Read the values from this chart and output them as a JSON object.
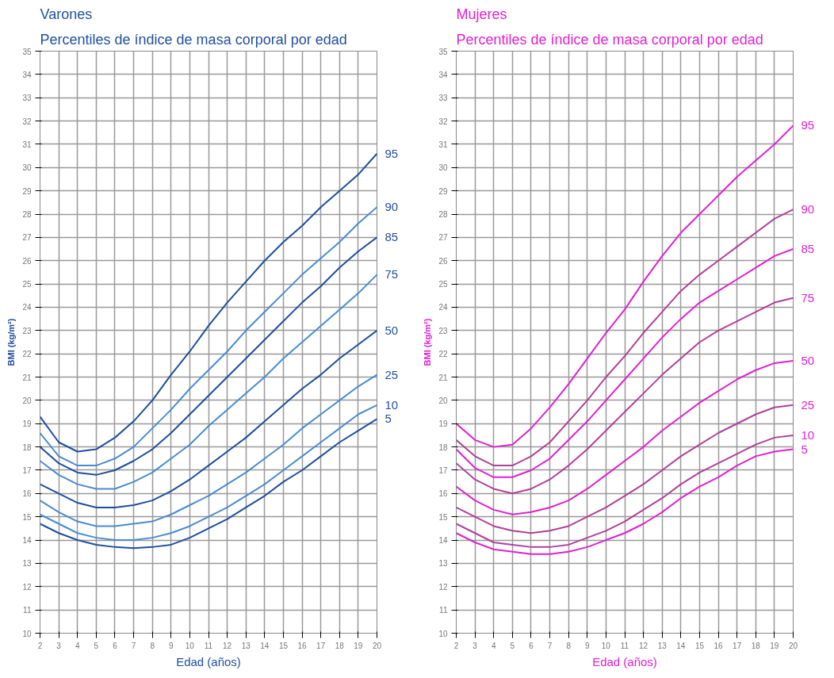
{
  "chart_data": [
    {
      "type": "line",
      "title": "Varones",
      "subtitle": "Percentiles de índice de masa corporal por edad",
      "xlabel": "Edad (años)",
      "ylabel": "BMI (kg/m²)",
      "x": [
        2,
        3,
        4,
        5,
        6,
        7,
        8,
        9,
        10,
        11,
        12,
        13,
        14,
        15,
        16,
        17,
        18,
        19,
        20
      ],
      "xlim": [
        2,
        20
      ],
      "ylim": [
        10,
        35
      ],
      "xticks": [
        2,
        3,
        4,
        5,
        6,
        7,
        8,
        9,
        10,
        11,
        12,
        13,
        14,
        15,
        16,
        17,
        18,
        19,
        20
      ],
      "yticks": [
        10,
        11,
        12,
        13,
        14,
        15,
        16,
        17,
        18,
        19,
        20,
        21,
        22,
        23,
        24,
        25,
        26,
        27,
        28,
        29,
        30,
        31,
        32,
        33,
        34,
        35
      ],
      "grid": true,
      "marker": "none",
      "line_style": "solid",
      "series": [
        {
          "name": "95",
          "color": "#1f4e9c",
          "values": [
            19.3,
            18.2,
            17.8,
            17.9,
            18.4,
            19.1,
            20.0,
            21.1,
            22.1,
            23.2,
            24.2,
            25.1,
            26.0,
            26.8,
            27.5,
            28.3,
            29.0,
            29.7,
            30.6
          ]
        },
        {
          "name": "90",
          "color": "#4a8bd0",
          "values": [
            18.6,
            17.6,
            17.2,
            17.2,
            17.5,
            18.0,
            18.8,
            19.6,
            20.5,
            21.3,
            22.1,
            23.0,
            23.8,
            24.6,
            25.4,
            26.1,
            26.8,
            27.6,
            28.3
          ]
        },
        {
          "name": "85",
          "color": "#1f4e9c",
          "values": [
            18.0,
            17.3,
            16.9,
            16.8,
            17.0,
            17.4,
            17.9,
            18.6,
            19.4,
            20.2,
            21.0,
            21.8,
            22.6,
            23.4,
            24.2,
            24.9,
            25.7,
            26.4,
            27.0
          ]
        },
        {
          "name": "75",
          "color": "#4a8bd0",
          "values": [
            17.4,
            16.8,
            16.4,
            16.2,
            16.2,
            16.5,
            16.9,
            17.5,
            18.1,
            18.9,
            19.6,
            20.3,
            21.0,
            21.8,
            22.5,
            23.2,
            23.9,
            24.6,
            25.4
          ]
        },
        {
          "name": "50",
          "color": "#1f4e9c",
          "values": [
            16.4,
            16.0,
            15.6,
            15.4,
            15.4,
            15.5,
            15.7,
            16.1,
            16.6,
            17.2,
            17.8,
            18.4,
            19.1,
            19.8,
            20.5,
            21.1,
            21.8,
            22.4,
            23.0
          ]
        },
        {
          "name": "25",
          "color": "#4a8bd0",
          "values": [
            15.7,
            15.2,
            14.8,
            14.6,
            14.6,
            14.7,
            14.8,
            15.1,
            15.5,
            15.9,
            16.4,
            16.9,
            17.5,
            18.1,
            18.8,
            19.4,
            20.0,
            20.6,
            21.1
          ]
        },
        {
          "name": "10",
          "color": "#4a8bd0",
          "values": [
            15.1,
            14.7,
            14.3,
            14.1,
            14.0,
            14.0,
            14.1,
            14.3,
            14.6,
            15.0,
            15.4,
            15.9,
            16.4,
            17.0,
            17.6,
            18.2,
            18.8,
            19.4,
            19.8
          ]
        },
        {
          "name": "5",
          "color": "#1f4e9c",
          "values": [
            14.7,
            14.3,
            14.0,
            13.8,
            13.7,
            13.65,
            13.7,
            13.8,
            14.1,
            14.5,
            14.9,
            15.4,
            15.9,
            16.5,
            17.0,
            17.6,
            18.2,
            18.7,
            19.2
          ]
        }
      ]
    },
    {
      "type": "line",
      "title": "Mujeres",
      "subtitle": "Percentiles de índice de masa corporal por edad",
      "xlabel": "Edad (años)",
      "ylabel": "BMI (kg/m²)",
      "x": [
        2,
        3,
        4,
        5,
        6,
        7,
        8,
        9,
        10,
        11,
        12,
        13,
        14,
        15,
        16,
        17,
        18,
        19,
        20
      ],
      "xlim": [
        2,
        20
      ],
      "ylim": [
        10,
        35
      ],
      "xticks": [
        2,
        3,
        4,
        5,
        6,
        7,
        8,
        9,
        10,
        11,
        12,
        13,
        14,
        15,
        16,
        17,
        18,
        19,
        20
      ],
      "yticks": [
        10,
        11,
        12,
        13,
        14,
        15,
        16,
        17,
        18,
        19,
        20,
        21,
        22,
        23,
        24,
        25,
        26,
        27,
        28,
        29,
        30,
        31,
        32,
        33,
        34,
        35
      ],
      "grid": true,
      "marker": "none",
      "line_style": "solid",
      "series": [
        {
          "name": "95",
          "color": "#e020d0",
          "values": [
            19.0,
            18.3,
            18.0,
            18.1,
            18.8,
            19.7,
            20.7,
            21.8,
            22.9,
            23.9,
            25.1,
            26.2,
            27.2,
            28.0,
            28.8,
            29.6,
            30.3,
            31.0,
            31.8
          ]
        },
        {
          "name": "90",
          "color": "#b0409a",
          "values": [
            18.3,
            17.6,
            17.2,
            17.2,
            17.6,
            18.2,
            19.1,
            20.0,
            21.0,
            21.9,
            22.9,
            23.8,
            24.7,
            25.4,
            26.0,
            26.6,
            27.2,
            27.8,
            28.2
          ]
        },
        {
          "name": "85",
          "color": "#e020d0",
          "values": [
            17.9,
            17.1,
            16.7,
            16.7,
            17.0,
            17.5,
            18.3,
            19.1,
            20.0,
            20.9,
            21.8,
            22.7,
            23.5,
            24.2,
            24.7,
            25.2,
            25.7,
            26.2,
            26.5
          ]
        },
        {
          "name": "75",
          "color": "#b0409a",
          "values": [
            17.3,
            16.6,
            16.2,
            16.0,
            16.2,
            16.6,
            17.2,
            17.9,
            18.7,
            19.5,
            20.3,
            21.1,
            21.8,
            22.5,
            23.0,
            23.4,
            23.8,
            24.2,
            24.4
          ]
        },
        {
          "name": "50",
          "color": "#e020d0",
          "values": [
            16.3,
            15.7,
            15.3,
            15.1,
            15.2,
            15.4,
            15.7,
            16.2,
            16.8,
            17.4,
            18.0,
            18.7,
            19.3,
            19.9,
            20.4,
            20.9,
            21.3,
            21.6,
            21.7
          ]
        },
        {
          "name": "25",
          "color": "#b0409a",
          "values": [
            15.4,
            15.0,
            14.6,
            14.4,
            14.3,
            14.4,
            14.6,
            15.0,
            15.4,
            15.9,
            16.4,
            17.0,
            17.6,
            18.1,
            18.6,
            19.0,
            19.4,
            19.7,
            19.8
          ]
        },
        {
          "name": "10",
          "color": "#b0409a",
          "values": [
            14.7,
            14.3,
            13.9,
            13.8,
            13.7,
            13.7,
            13.8,
            14.1,
            14.4,
            14.8,
            15.3,
            15.8,
            16.4,
            16.9,
            17.3,
            17.7,
            18.1,
            18.4,
            18.5
          ]
        },
        {
          "name": "5",
          "color": "#e020d0",
          "values": [
            14.3,
            13.9,
            13.6,
            13.5,
            13.4,
            13.4,
            13.5,
            13.7,
            14.0,
            14.3,
            14.7,
            15.2,
            15.8,
            16.3,
            16.7,
            17.2,
            17.6,
            17.8,
            17.9
          ]
        }
      ]
    }
  ]
}
